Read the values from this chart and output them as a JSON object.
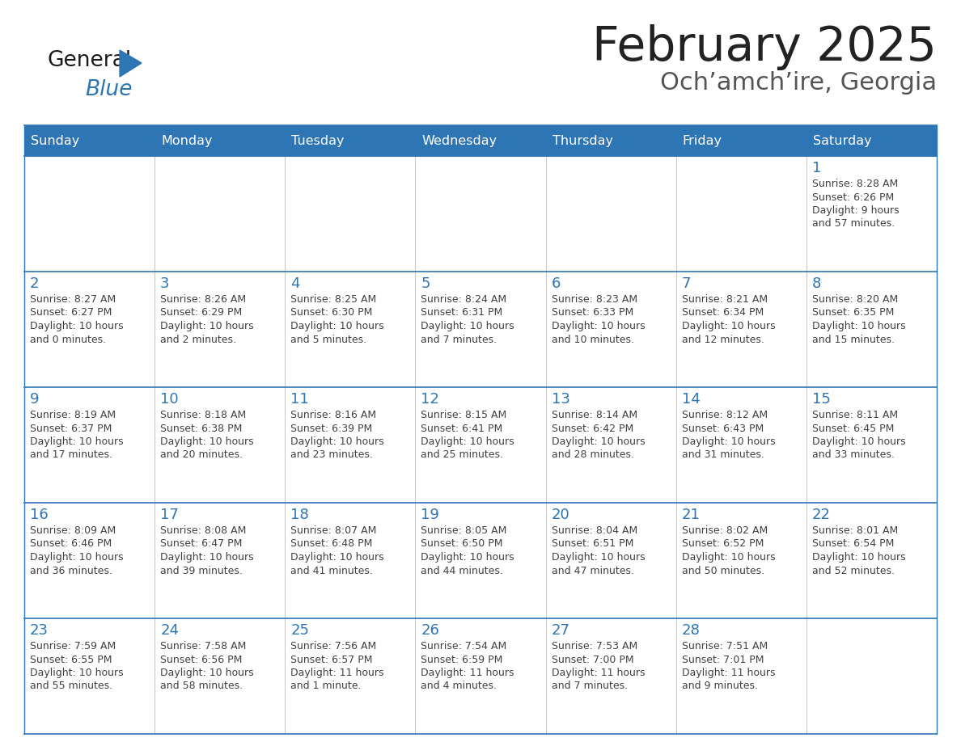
{
  "title": "February 2025",
  "subtitle": "Och’amch’ire, Georgia",
  "header_color": "#2e75b6",
  "header_text_color": "#ffffff",
  "days_of_week": [
    "Sunday",
    "Monday",
    "Tuesday",
    "Wednesday",
    "Thursday",
    "Friday",
    "Saturday"
  ],
  "border_color": "#2e75b6",
  "text_color": "#404040",
  "day_num_color": "#2e75b6",
  "logo_general_color": "#1a1a1a",
  "logo_blue_color": "#2e75b6",
  "cell_bg": "#ffffff",
  "weeks": [
    [
      {
        "day": null,
        "sunrise": null,
        "sunset": null,
        "daylight_h": null,
        "daylight_m": null,
        "daylight_unit": null
      },
      {
        "day": null,
        "sunrise": null,
        "sunset": null,
        "daylight_h": null,
        "daylight_m": null,
        "daylight_unit": null
      },
      {
        "day": null,
        "sunrise": null,
        "sunset": null,
        "daylight_h": null,
        "daylight_m": null,
        "daylight_unit": null
      },
      {
        "day": null,
        "sunrise": null,
        "sunset": null,
        "daylight_h": null,
        "daylight_m": null,
        "daylight_unit": null
      },
      {
        "day": null,
        "sunrise": null,
        "sunset": null,
        "daylight_h": null,
        "daylight_m": null,
        "daylight_unit": null
      },
      {
        "day": null,
        "sunrise": null,
        "sunset": null,
        "daylight_h": null,
        "daylight_m": null,
        "daylight_unit": null
      },
      {
        "day": 1,
        "sunrise": "8:28 AM",
        "sunset": "6:26 PM",
        "daylight_h": "9 hours",
        "daylight_m": "57 minutes",
        "daylight_unit": "minutes"
      }
    ],
    [
      {
        "day": 2,
        "sunrise": "8:27 AM",
        "sunset": "6:27 PM",
        "daylight_h": "10 hours",
        "daylight_m": "0 minutes",
        "daylight_unit": "minutes"
      },
      {
        "day": 3,
        "sunrise": "8:26 AM",
        "sunset": "6:29 PM",
        "daylight_h": "10 hours",
        "daylight_m": "2 minutes",
        "daylight_unit": "minutes"
      },
      {
        "day": 4,
        "sunrise": "8:25 AM",
        "sunset": "6:30 PM",
        "daylight_h": "10 hours",
        "daylight_m": "5 minutes",
        "daylight_unit": "minutes"
      },
      {
        "day": 5,
        "sunrise": "8:24 AM",
        "sunset": "6:31 PM",
        "daylight_h": "10 hours",
        "daylight_m": "7 minutes",
        "daylight_unit": "minutes"
      },
      {
        "day": 6,
        "sunrise": "8:23 AM",
        "sunset": "6:33 PM",
        "daylight_h": "10 hours",
        "daylight_m": "10 minutes",
        "daylight_unit": "minutes"
      },
      {
        "day": 7,
        "sunrise": "8:21 AM",
        "sunset": "6:34 PM",
        "daylight_h": "10 hours",
        "daylight_m": "12 minutes",
        "daylight_unit": "minutes"
      },
      {
        "day": 8,
        "sunrise": "8:20 AM",
        "sunset": "6:35 PM",
        "daylight_h": "10 hours",
        "daylight_m": "15 minutes",
        "daylight_unit": "minutes"
      }
    ],
    [
      {
        "day": 9,
        "sunrise": "8:19 AM",
        "sunset": "6:37 PM",
        "daylight_h": "10 hours",
        "daylight_m": "17 minutes",
        "daylight_unit": "minutes"
      },
      {
        "day": 10,
        "sunrise": "8:18 AM",
        "sunset": "6:38 PM",
        "daylight_h": "10 hours",
        "daylight_m": "20 minutes",
        "daylight_unit": "minutes"
      },
      {
        "day": 11,
        "sunrise": "8:16 AM",
        "sunset": "6:39 PM",
        "daylight_h": "10 hours",
        "daylight_m": "23 minutes",
        "daylight_unit": "minutes"
      },
      {
        "day": 12,
        "sunrise": "8:15 AM",
        "sunset": "6:41 PM",
        "daylight_h": "10 hours",
        "daylight_m": "25 minutes",
        "daylight_unit": "minutes"
      },
      {
        "day": 13,
        "sunrise": "8:14 AM",
        "sunset": "6:42 PM",
        "daylight_h": "10 hours",
        "daylight_m": "28 minutes",
        "daylight_unit": "minutes"
      },
      {
        "day": 14,
        "sunrise": "8:12 AM",
        "sunset": "6:43 PM",
        "daylight_h": "10 hours",
        "daylight_m": "31 minutes",
        "daylight_unit": "minutes"
      },
      {
        "day": 15,
        "sunrise": "8:11 AM",
        "sunset": "6:45 PM",
        "daylight_h": "10 hours",
        "daylight_m": "33 minutes",
        "daylight_unit": "minutes"
      }
    ],
    [
      {
        "day": 16,
        "sunrise": "8:09 AM",
        "sunset": "6:46 PM",
        "daylight_h": "10 hours",
        "daylight_m": "36 minutes",
        "daylight_unit": "minutes"
      },
      {
        "day": 17,
        "sunrise": "8:08 AM",
        "sunset": "6:47 PM",
        "daylight_h": "10 hours",
        "daylight_m": "39 minutes",
        "daylight_unit": "minutes"
      },
      {
        "day": 18,
        "sunrise": "8:07 AM",
        "sunset": "6:48 PM",
        "daylight_h": "10 hours",
        "daylight_m": "41 minutes",
        "daylight_unit": "minutes"
      },
      {
        "day": 19,
        "sunrise": "8:05 AM",
        "sunset": "6:50 PM",
        "daylight_h": "10 hours",
        "daylight_m": "44 minutes",
        "daylight_unit": "minutes"
      },
      {
        "day": 20,
        "sunrise": "8:04 AM",
        "sunset": "6:51 PM",
        "daylight_h": "10 hours",
        "daylight_m": "47 minutes",
        "daylight_unit": "minutes"
      },
      {
        "day": 21,
        "sunrise": "8:02 AM",
        "sunset": "6:52 PM",
        "daylight_h": "10 hours",
        "daylight_m": "50 minutes",
        "daylight_unit": "minutes"
      },
      {
        "day": 22,
        "sunrise": "8:01 AM",
        "sunset": "6:54 PM",
        "daylight_h": "10 hours",
        "daylight_m": "52 minutes",
        "daylight_unit": "minutes"
      }
    ],
    [
      {
        "day": 23,
        "sunrise": "7:59 AM",
        "sunset": "6:55 PM",
        "daylight_h": "10 hours",
        "daylight_m": "55 minutes",
        "daylight_unit": "minutes"
      },
      {
        "day": 24,
        "sunrise": "7:58 AM",
        "sunset": "6:56 PM",
        "daylight_h": "10 hours",
        "daylight_m": "58 minutes",
        "daylight_unit": "minutes"
      },
      {
        "day": 25,
        "sunrise": "7:56 AM",
        "sunset": "6:57 PM",
        "daylight_h": "11 hours",
        "daylight_m": "1 minute",
        "daylight_unit": "minute"
      },
      {
        "day": 26,
        "sunrise": "7:54 AM",
        "sunset": "6:59 PM",
        "daylight_h": "11 hours",
        "daylight_m": "4 minutes",
        "daylight_unit": "minutes"
      },
      {
        "day": 27,
        "sunrise": "7:53 AM",
        "sunset": "7:00 PM",
        "daylight_h": "11 hours",
        "daylight_m": "7 minutes",
        "daylight_unit": "minutes"
      },
      {
        "day": 28,
        "sunrise": "7:51 AM",
        "sunset": "7:01 PM",
        "daylight_h": "11 hours",
        "daylight_m": "9 minutes",
        "daylight_unit": "minutes"
      },
      {
        "day": null,
        "sunrise": null,
        "sunset": null,
        "daylight_h": null,
        "daylight_m": null,
        "daylight_unit": null
      }
    ]
  ]
}
